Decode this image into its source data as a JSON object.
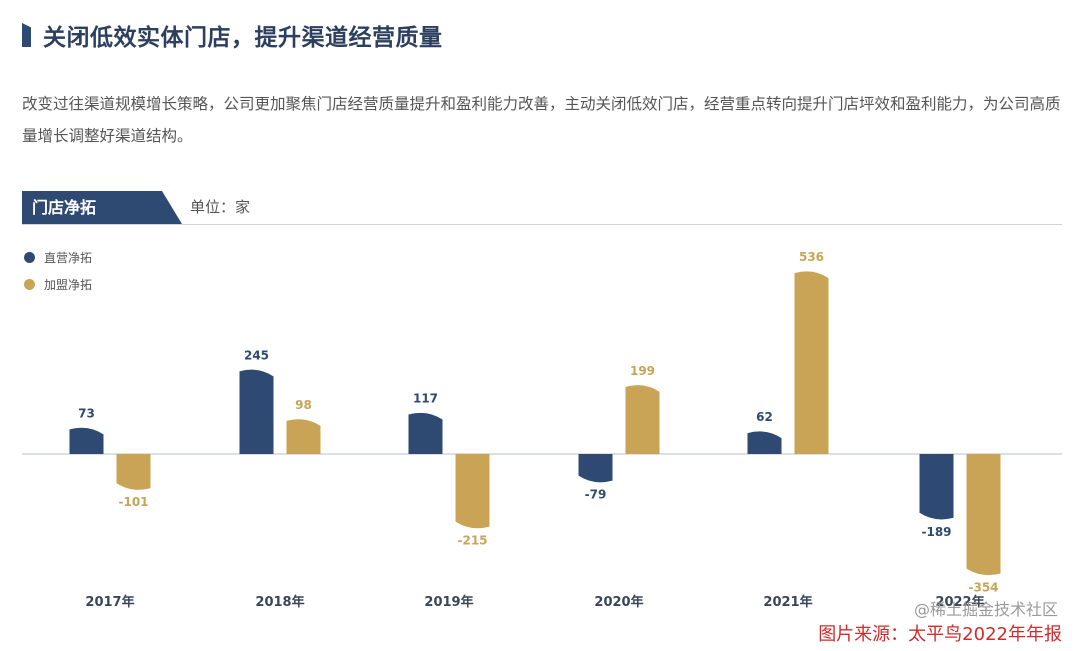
{
  "header": {
    "title": "关闭低效实体门店，提升渠道经营质量"
  },
  "description": "改变过往渠道规模增长策略，公司更加聚焦门店经营质量提升和盈利能力改善，主动关闭低效门店，经营重点转向提升门店坪效和盈利能力，为公司高质量增长调整好渠道结构。",
  "section": {
    "tab_label": "门店净拓",
    "unit_label": "单位：家"
  },
  "footer": {
    "source": "图片来源：太平鸟2022年年报",
    "watermark": "@稀土掘金技术社区"
  },
  "colors": {
    "direct": "#2f4a72",
    "franchise": "#c9a457",
    "accent": "#2f4a72",
    "source": "#d12b2b"
  },
  "chart_data": {
    "type": "bar",
    "categories": [
      "2017年",
      "2018年",
      "2019年",
      "2020年",
      "2021年",
      "2022年"
    ],
    "series": [
      {
        "name": "直营净拓",
        "values": [
          73,
          245,
          117,
          -79,
          62,
          -189
        ]
      },
      {
        "name": "加盟净拓",
        "values": [
          -101,
          98,
          -215,
          199,
          536,
          -354
        ]
      }
    ],
    "title": "门店净拓",
    "ylabel": "单位：家",
    "ylim": [
      -380,
      580
    ],
    "legend_position": "top-left"
  }
}
